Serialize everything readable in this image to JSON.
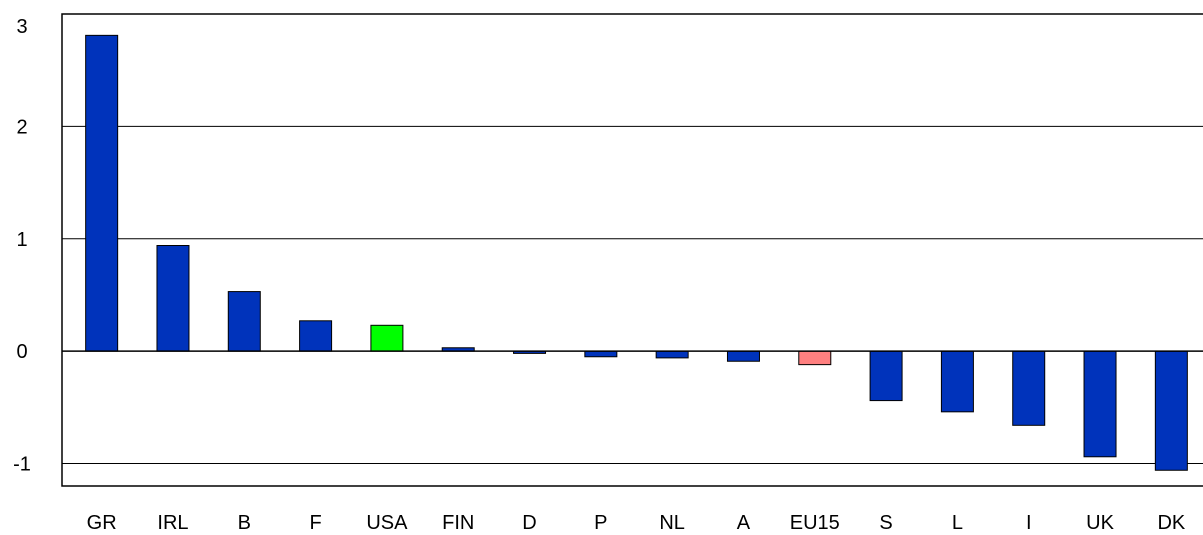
{
  "chart_data": {
    "type": "bar",
    "categories": [
      "GR",
      "IRL",
      "B",
      "F",
      "USA",
      "FIN",
      "D",
      "P",
      "NL",
      "A",
      "EU15",
      "S",
      "L",
      "I",
      "UK",
      "DK"
    ],
    "values": [
      2.81,
      0.94,
      0.53,
      0.27,
      0.23,
      0.03,
      -0.02,
      -0.05,
      -0.06,
      -0.09,
      -0.12,
      -0.44,
      -0.54,
      -0.66,
      -0.94,
      -1.06
    ],
    "colors": [
      "#0033BB",
      "#0033BB",
      "#0033BB",
      "#0033BB",
      "#00FF00",
      "#0033BB",
      "#0033BB",
      "#0033BB",
      "#0033BB",
      "#0033BB",
      "#FF8080",
      "#0033BB",
      "#0033BB",
      "#0033BB",
      "#0033BB",
      "#0033BB"
    ],
    "yticks": [
      -1,
      0,
      1,
      2,
      3
    ],
    "ytick_labels": [
      "-1",
      "0",
      "1",
      "2",
      "3"
    ],
    "ylim": [
      -1.2,
      3.0
    ],
    "grid": true,
    "title": "",
    "xlabel": "",
    "ylabel": ""
  }
}
